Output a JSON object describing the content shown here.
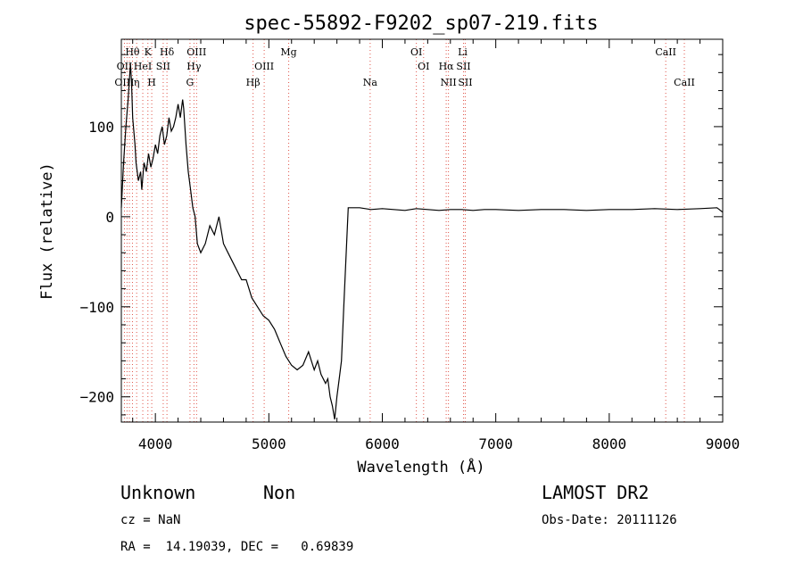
{
  "chart_data": {
    "type": "line",
    "title": "spec-55892-F9202_sp07-219.fits",
    "xlabel": "Wavelength (Å)",
    "ylabel": "Flux (relative)",
    "xlim": [
      3700,
      9000
    ],
    "ylim": [
      -228,
      197
    ],
    "x_ticks": [
      4000,
      5000,
      6000,
      7000,
      8000,
      9000
    ],
    "x_tick_labels": [
      "4000",
      "5000",
      "6000",
      "7000",
      "8000",
      "9000"
    ],
    "y_ticks": [
      100,
      0,
      -100,
      -200
    ],
    "y_tick_labels": [
      "100",
      "0",
      "−100",
      "−200"
    ],
    "grid": false,
    "series": [
      {
        "x": [
          3700,
          3720,
          3740,
          3760,
          3780,
          3790,
          3800,
          3810,
          3820,
          3830,
          3850,
          3870,
          3880,
          3900,
          3920,
          3940,
          3960,
          3980,
          4000,
          4020,
          4040,
          4060,
          4080,
          4100,
          4120,
          4140,
          4160,
          4180,
          4200,
          4220,
          4240,
          4250,
          4270,
          4290,
          4310,
          4330,
          4350,
          4370,
          4400,
          4440,
          4480,
          4520,
          4560,
          4600,
          4640,
          4680,
          4720,
          4760,
          4800,
          4850,
          4900,
          4950,
          5000,
          5050,
          5100,
          5150,
          5200,
          5250,
          5300,
          5350,
          5400,
          5430,
          5460,
          5500,
          5520,
          5540,
          5560,
          5580,
          5600,
          5620,
          5640,
          5660,
          5700,
          5800,
          5900,
          6000,
          6100,
          6200,
          6300,
          6400,
          6500,
          6600,
          6700,
          6800,
          6900,
          7000,
          7200,
          7400,
          7600,
          7800,
          8000,
          8200,
          8400,
          8600,
          8800,
          8950,
          9000
        ],
        "y": [
          10,
          60,
          100,
          130,
          170,
          150,
          110,
          95,
          80,
          60,
          40,
          50,
          30,
          60,
          50,
          70,
          55,
          65,
          80,
          70,
          90,
          100,
          80,
          90,
          110,
          95,
          100,
          110,
          125,
          110,
          130,
          120,
          80,
          50,
          30,
          10,
          0,
          -30,
          -40,
          -30,
          -10,
          -20,
          0,
          -30,
          -40,
          -50,
          -60,
          -70,
          -70,
          -90,
          -100,
          -110,
          -115,
          -125,
          -140,
          -155,
          -165,
          -170,
          -165,
          -150,
          -170,
          -160,
          -175,
          -185,
          -180,
          -200,
          -210,
          -225,
          -200,
          -180,
          -160,
          -100,
          10,
          10,
          8,
          9,
          8,
          7,
          9,
          8,
          7,
          8,
          8,
          7,
          8,
          8,
          7,
          8,
          8,
          7,
          8,
          8,
          9,
          8,
          9,
          10,
          5
        ]
      }
    ],
    "line_markers": [
      {
        "label": "Hθ",
        "x": 3798,
        "row": 1
      },
      {
        "label": "K",
        "x": 3934,
        "row": 1
      },
      {
        "label": "Hδ",
        "x": 4102,
        "row": 1
      },
      {
        "label": "OIII",
        "x": 4363,
        "row": 1
      },
      {
        "label": "Mg",
        "x": 5175,
        "row": 1
      },
      {
        "label": "OI",
        "x": 6300,
        "row": 1
      },
      {
        "label": "Li",
        "x": 6708,
        "row": 1
      },
      {
        "label": "CaII",
        "x": 8498,
        "row": 1
      },
      {
        "label": "OII",
        "x": 3727,
        "row": 2
      },
      {
        "label": "HeI",
        "x": 3889,
        "row": 2
      },
      {
        "label": "SII",
        "x": 4069,
        "row": 2
      },
      {
        "label": "Hγ",
        "x": 4340,
        "row": 2
      },
      {
        "label": "OIII",
        "x": 4959,
        "row": 2
      },
      {
        "label": "OI",
        "x": 6364,
        "row": 2
      },
      {
        "label": "Hα",
        "x": 6563,
        "row": 2
      },
      {
        "label": "SII",
        "x": 6716,
        "row": 2
      },
      {
        "label": "OIII",
        "x": 3727,
        "row": 3
      },
      {
        "label": "η",
        "x": 3835,
        "row": 3
      },
      {
        "label": "H",
        "x": 3968,
        "row": 3
      },
      {
        "label": "G",
        "x": 4305,
        "row": 3
      },
      {
        "label": "Hβ",
        "x": 4861,
        "row": 3
      },
      {
        "label": "Na",
        "x": 5893,
        "row": 3
      },
      {
        "label": "NII",
        "x": 6583,
        "row": 3
      },
      {
        "label": "SII",
        "x": 6731,
        "row": 3
      },
      {
        "label": "CaII",
        "x": 8662,
        "row": 3
      }
    ],
    "marker_lines": [
      3727,
      3750,
      3771,
      3798,
      3835,
      3889,
      3934,
      3968,
      4069,
      4102,
      4305,
      4340,
      4363,
      4861,
      4959,
      5175,
      5893,
      6300,
      6364,
      6563,
      6583,
      6716,
      6731,
      8498,
      8662
    ],
    "colors": {
      "spectrum": "#000000",
      "marker_lines": "#e0554a"
    }
  },
  "info": {
    "class": "Unknown",
    "subclass": "Non",
    "survey": "LAMOST DR2",
    "cz": "cz = NaN",
    "obs_date": "Obs-Date: 20111126",
    "coords": "RA =  14.19039, DEC =   0.69839"
  }
}
